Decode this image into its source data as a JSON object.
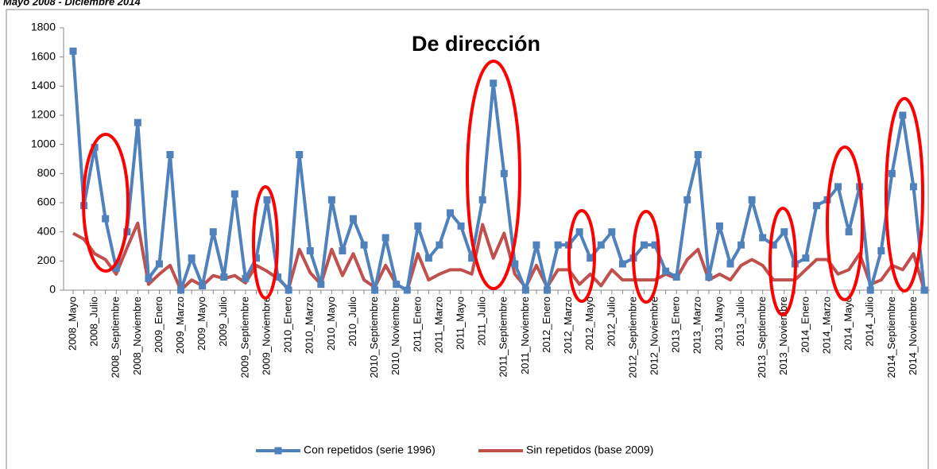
{
  "chart_data": {
    "type": "line",
    "title": "De dirección",
    "subtitle": "Mayo 2008 - Diciembre 2014",
    "categories": [
      "2008_Mayo",
      null,
      "2008_Julio",
      null,
      "2008_Septiembre",
      null,
      "2008_Noviembre",
      null,
      "2009_Enero",
      null,
      "2009_Marzo",
      null,
      "2009_Mayo",
      null,
      "2009_Julio",
      null,
      "2009_Septiembre",
      null,
      "2009_Noviembre",
      null,
      "2010_Enero",
      null,
      "2010_Marzo",
      null,
      "2010_Mayo",
      null,
      "2010_Julio",
      null,
      "2010_Septiembre",
      null,
      "2010_Noviembre",
      null,
      "2011_Enero",
      null,
      "2011_Marzo",
      null,
      "2011_Mayo",
      null,
      "2011_Julio",
      null,
      "2011_Septiembre",
      null,
      "2011_Noviembre",
      null,
      "2012_Enero",
      null,
      "2012_Marzo",
      null,
      "2012_Mayo",
      null,
      "2012_Julio",
      null,
      "2012_Septiembre",
      null,
      "2012_Noviembre",
      null,
      "2013_Enero",
      null,
      "2013_Marzo",
      null,
      "2013_Mayo",
      null,
      "2013_Julio",
      null,
      "2013_Septiembre",
      null,
      "2013_Noviembre",
      null,
      "2014_Enero",
      null,
      "2014_Marzo",
      null,
      "2014_Mayo",
      null,
      "2014_Julio",
      null,
      "2014_Septiembre",
      null,
      "2014_Noviembre",
      null
    ],
    "series": [
      {
        "name": "Con repetidos (serie 1996)",
        "color": "#4f81bd",
        "marker": "square",
        "values": [
          1640,
          580,
          980,
          490,
          150,
          400,
          1150,
          80,
          180,
          930,
          0,
          220,
          30,
          400,
          90,
          660,
          80,
          220,
          620,
          90,
          0,
          930,
          270,
          40,
          620,
          270,
          490,
          310,
          0,
          360,
          40,
          0,
          440,
          220,
          310,
          530,
          440,
          220,
          620,
          1420,
          800,
          180,
          0,
          310,
          0,
          310,
          310,
          400,
          220,
          310,
          400,
          180,
          220,
          310,
          310,
          130,
          90,
          620,
          930,
          90,
          440,
          180,
          310,
          620,
          360,
          310,
          400,
          180,
          220,
          580,
          620,
          710,
          400,
          710,
          0,
          270,
          800,
          1200,
          710,
          0
        ]
      },
      {
        "name": "Sin repetidos (base 2009)",
        "color": "#c0504d",
        "values": [
          390,
          350,
          250,
          210,
          110,
          290,
          460,
          40,
          110,
          170,
          0,
          70,
          30,
          100,
          80,
          100,
          50,
          170,
          130,
          80,
          10,
          280,
          120,
          40,
          280,
          100,
          250,
          70,
          20,
          170,
          40,
          0,
          250,
          70,
          110,
          140,
          140,
          110,
          450,
          220,
          390,
          110,
          20,
          170,
          20,
          140,
          140,
          40,
          110,
          30,
          140,
          70,
          70,
          70,
          70,
          110,
          80,
          210,
          280,
          70,
          110,
          70,
          170,
          210,
          170,
          70,
          70,
          70,
          140,
          210,
          210,
          110,
          140,
          250,
          40,
          70,
          170,
          140,
          250,
          0
        ]
      }
    ],
    "ylim": [
      0,
      1800
    ],
    "yticks": [
      0,
      200,
      400,
      600,
      800,
      1000,
      1200,
      1400,
      1600,
      1800
    ],
    "legend": "bottom"
  }
}
